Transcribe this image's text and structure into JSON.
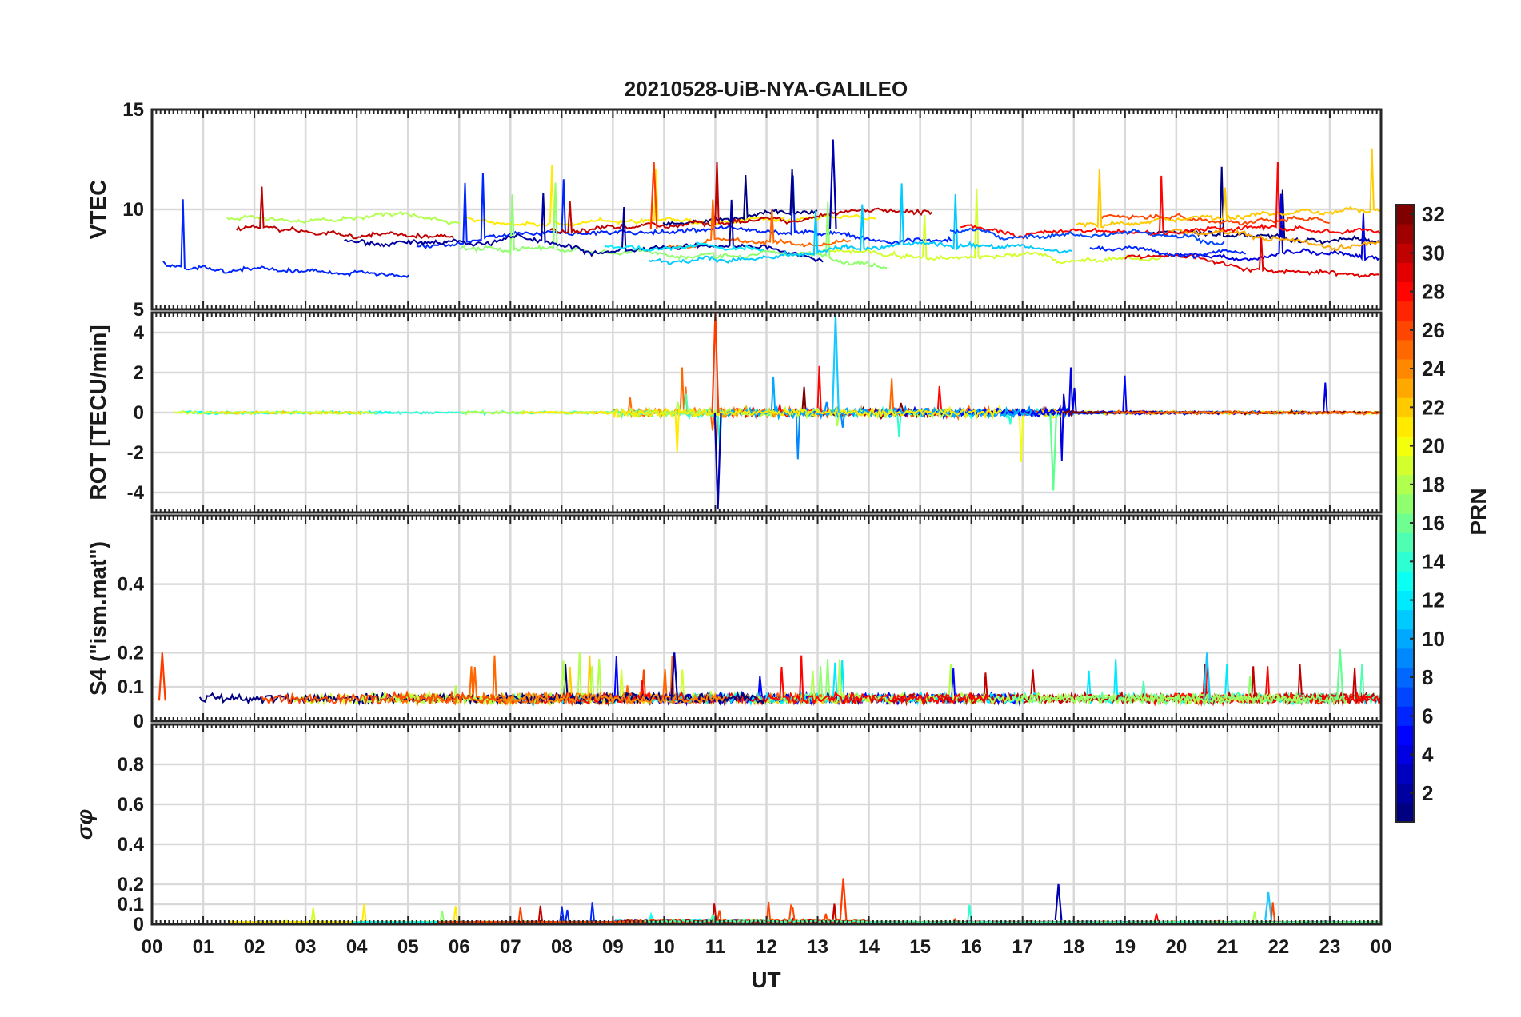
{
  "figure": {
    "title": "20210528-UiB-NYA-GALILEO",
    "xlabel": "UT",
    "x_ticks": [
      "00",
      "01",
      "02",
      "03",
      "04",
      "05",
      "06",
      "07",
      "08",
      "09",
      "10",
      "11",
      "12",
      "13",
      "14",
      "15",
      "16",
      "17",
      "18",
      "19",
      "20",
      "21",
      "22",
      "23",
      "00"
    ]
  },
  "colorbar": {
    "label": "PRN",
    "range": [
      1,
      32
    ],
    "ticks": [
      "2",
      "4",
      "6",
      "8",
      "10",
      "12",
      "14",
      "16",
      "18",
      "20",
      "22",
      "24",
      "26",
      "28",
      "30",
      "32"
    ],
    "colormap": "jet"
  },
  "chart_data": [
    {
      "type": "line",
      "ylabel": "VTEC",
      "ylim": [
        5,
        15
      ],
      "y_ticks": [
        "5",
        "10",
        "15"
      ],
      "x_range_hours": [
        0,
        24
      ],
      "grid": true,
      "series_color_by": "PRN",
      "note_values": {
        "typical_range": [
          6,
          11
        ],
        "peaks": [
          {
            "x": 9.8,
            "y": 12.4
          },
          {
            "x": 13.3,
            "y": 13.5
          }
        ]
      }
    },
    {
      "type": "line",
      "ylabel": "ROT [TECU/min]",
      "ylim": [
        -5,
        5
      ],
      "y_ticks": [
        "-4",
        "-2",
        "0",
        "2",
        "4"
      ],
      "x_range_hours": [
        0,
        24
      ],
      "grid": true,
      "series_color_by": "PRN",
      "note_values": {
        "peaks": [
          {
            "x": 11.0,
            "y": 5
          },
          {
            "x": 11.05,
            "y": -4.8
          },
          {
            "x": 13.35,
            "y": 4.9
          },
          {
            "x": 17.6,
            "y": -3.9
          }
        ]
      }
    },
    {
      "type": "line",
      "ylabel": "S4 (\"ism.mat\")",
      "ylim": [
        0,
        0.6
      ],
      "y_ticks": [
        "0",
        "0.1",
        "0.2",
        "0.4"
      ],
      "x_range_hours": [
        0,
        24
      ],
      "grid": true,
      "series_color_by": "PRN",
      "note_values": {
        "baseline": 0.06,
        "peaks": [
          {
            "x": 0.2,
            "y": 0.2
          },
          {
            "x": 10.2,
            "y": 0.2
          },
          {
            "x": 20.6,
            "y": 0.2
          },
          {
            "x": 23.2,
            "y": 0.21
          }
        ]
      }
    },
    {
      "type": "line",
      "ylabel": "σφ",
      "ylim": [
        0,
        1
      ],
      "y_ticks": [
        "0",
        "0.1",
        "0.2",
        "0.4",
        "0.6",
        "0.8"
      ],
      "x_range_hours": [
        0,
        24
      ],
      "grid": true,
      "series_color_by": "PRN",
      "note_values": {
        "baseline": 0.02,
        "peaks": [
          {
            "x": 13.5,
            "y": 0.23
          },
          {
            "x": 17.7,
            "y": 0.2
          },
          {
            "x": 21.8,
            "y": 0.16
          }
        ]
      }
    }
  ]
}
